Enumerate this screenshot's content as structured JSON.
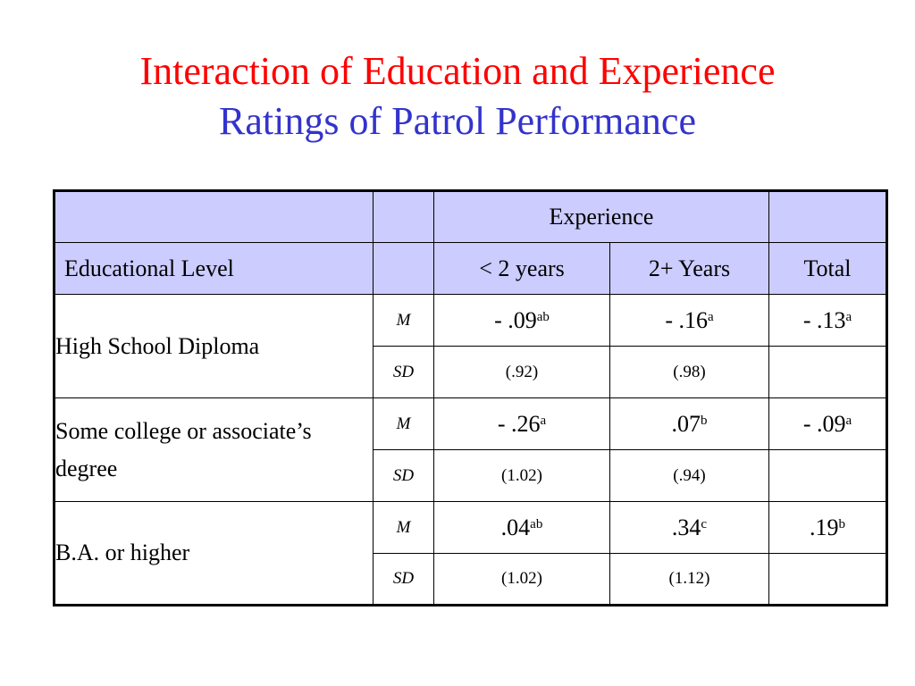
{
  "title": {
    "line1": "Interaction of Education and Experience",
    "line2": "Ratings of Patrol Performance",
    "line1_color": "#ff0000",
    "line2_color": "#3333cc"
  },
  "table": {
    "header_bg_color": "#ccccff",
    "group_header": "Experience",
    "row_header": "Educational Level",
    "columns": [
      "< 2 years",
      "2+ Years",
      "Total"
    ],
    "rows": [
      {
        "level": "High School Diploma",
        "m_label": "M",
        "sd_label": "SD",
        "m": [
          {
            "value": "- .09",
            "sup": "ab"
          },
          {
            "value": "- .16",
            "sup": "a"
          },
          {
            "value": "- .13",
            "sup": "a"
          }
        ],
        "sd": [
          "(.92)",
          "(.98)",
          ""
        ]
      },
      {
        "level": "Some college or associate’s degree",
        "m_label": "M",
        "sd_label": "SD",
        "m": [
          {
            "value": "- .26",
            "sup": "a"
          },
          {
            "value": ".07",
            "sup": "b"
          },
          {
            "value": "- .09",
            "sup": "a"
          }
        ],
        "sd": [
          "(1.02)",
          "(.94)",
          ""
        ]
      },
      {
        "level": "B.A. or higher",
        "m_label": "M",
        "sd_label": "SD",
        "m": [
          {
            "value": ".04",
            "sup": "ab"
          },
          {
            "value": ".34",
            "sup": "c"
          },
          {
            "value": ".19",
            "sup": "b"
          }
        ],
        "sd": [
          "(1.02)",
          "(1.12)",
          ""
        ]
      }
    ]
  }
}
